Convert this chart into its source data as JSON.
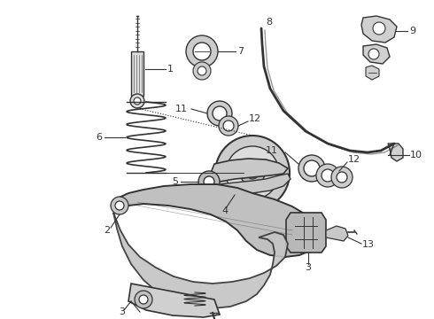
{
  "bg_color": "#ffffff",
  "line_color": "#333333",
  "gray_fill": "#cccccc",
  "light_gray": "#e8e8e8",
  "dark_gray": "#999999",
  "figsize": [
    4.9,
    3.6
  ],
  "dpi": 100
}
